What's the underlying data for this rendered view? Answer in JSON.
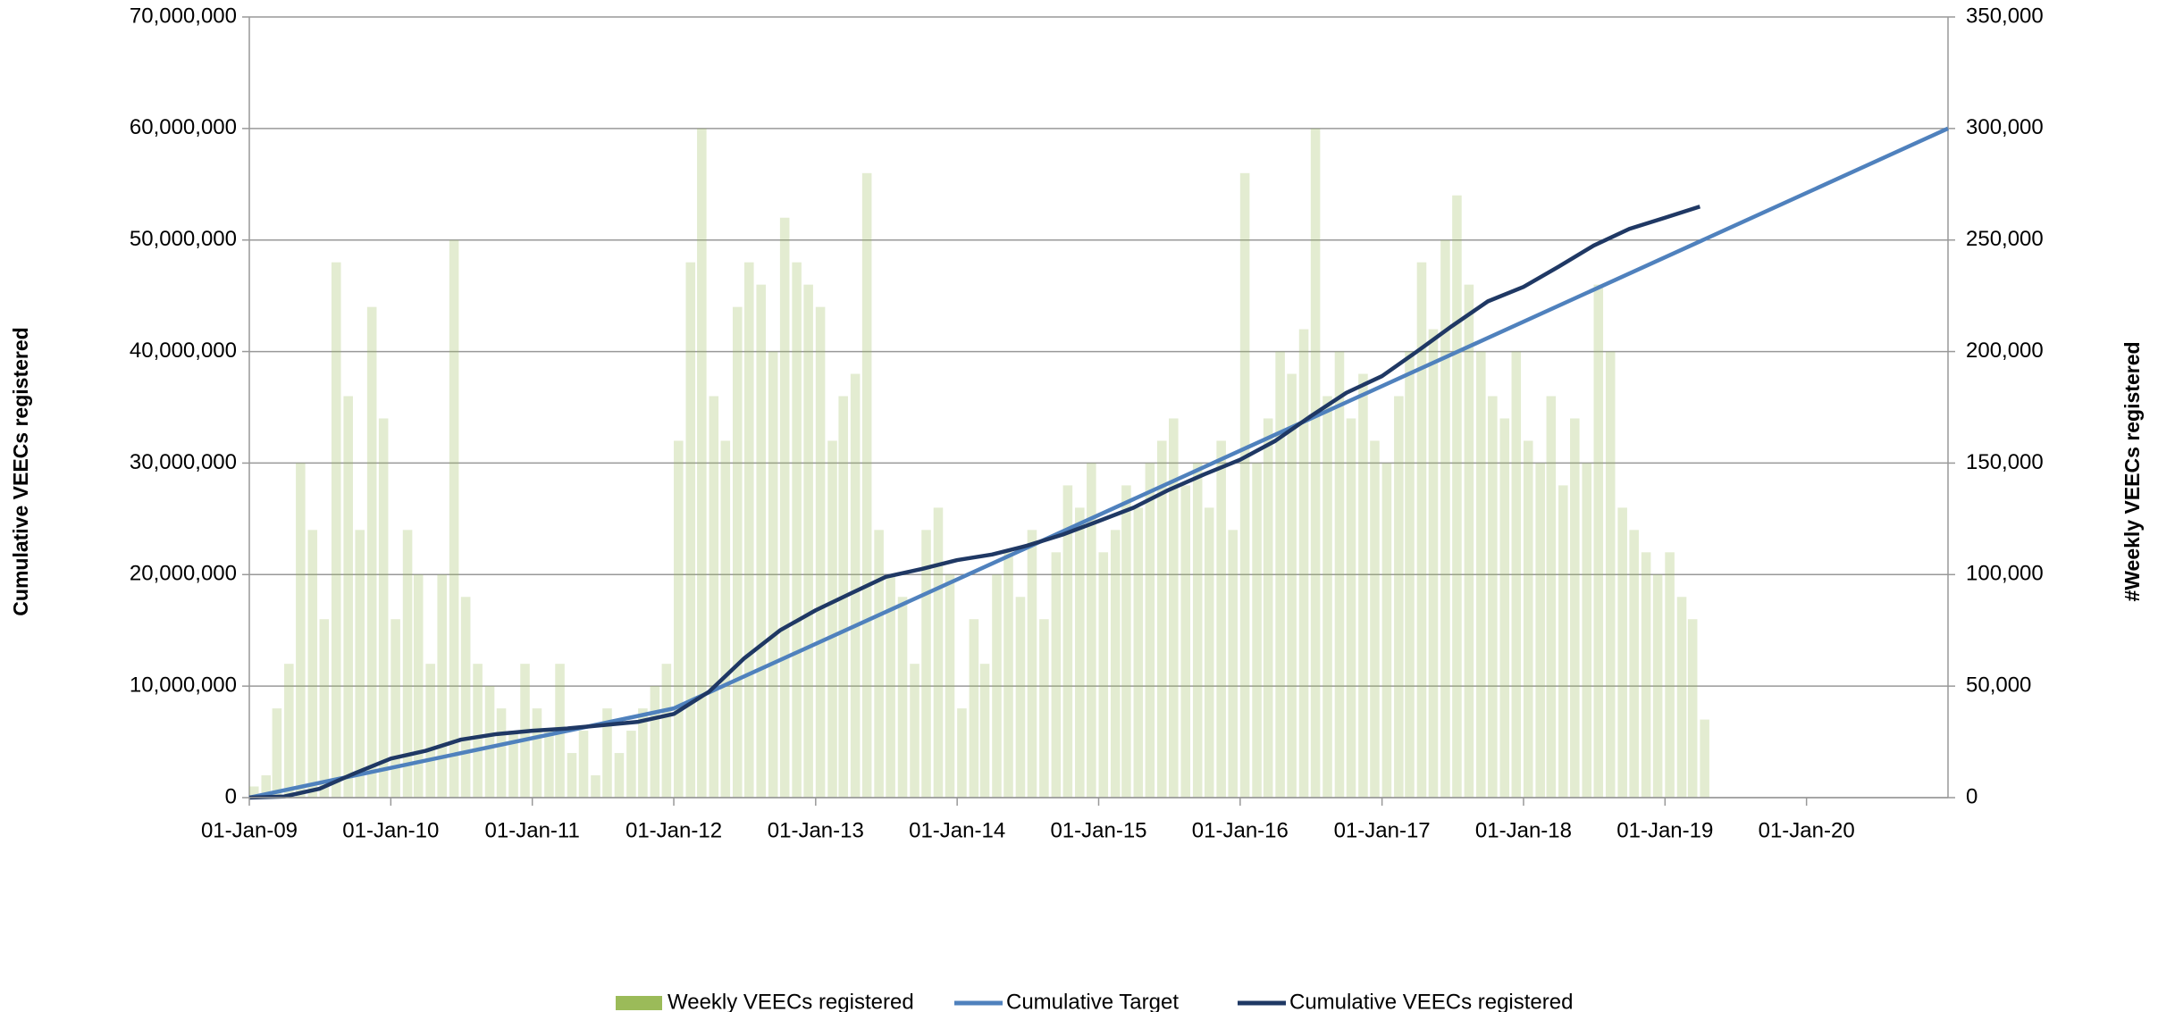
{
  "chart_data": {
    "type": "combo",
    "ylabel": "Cumulative VEECs registered",
    "y2label": "#Weekly VEECs registered",
    "xlim": [
      "2009-01-01",
      "2020-12-31"
    ],
    "xticks": [
      {
        "value": "2009-01-01",
        "label": "01-Jan-09"
      },
      {
        "value": "2010-01-01",
        "label": "01-Jan-10"
      },
      {
        "value": "2011-01-01",
        "label": "01-Jan-11"
      },
      {
        "value": "2012-01-01",
        "label": "01-Jan-12"
      },
      {
        "value": "2013-01-01",
        "label": "01-Jan-13"
      },
      {
        "value": "2014-01-01",
        "label": "01-Jan-14"
      },
      {
        "value": "2015-01-01",
        "label": "01-Jan-15"
      },
      {
        "value": "2016-01-01",
        "label": "01-Jan-16"
      },
      {
        "value": "2017-01-01",
        "label": "01-Jan-17"
      },
      {
        "value": "2018-01-01",
        "label": "01-Jan-18"
      },
      {
        "value": "2019-01-01",
        "label": "01-Jan-19"
      },
      {
        "value": "2020-01-01",
        "label": "01-Jan-20"
      }
    ],
    "ylim": [
      0,
      70000000
    ],
    "yticks": [
      0,
      {
        "value": 10000000,
        "label": "10,000,000"
      },
      {
        "value": 20000000,
        "label": "20,000,000"
      },
      {
        "value": 30000000,
        "label": "30,000,000"
      },
      {
        "value": 40000000,
        "label": "40,000,000"
      },
      {
        "value": 50000000,
        "label": "50,000,000"
      },
      {
        "value": 60000000,
        "label": "60,000,000"
      },
      {
        "value": 70000000,
        "label": "70,000,000"
      }
    ],
    "y2lim": [
      0,
      350000
    ],
    "y2ticks": [
      0,
      {
        "value": 50000,
        "label": "50,000"
      },
      {
        "value": 100000,
        "label": "100,000"
      },
      {
        "value": 150000,
        "label": "150,000"
      },
      {
        "value": 200000,
        "label": "200,000"
      },
      {
        "value": 250000,
        "label": "250,000"
      },
      {
        "value": 300000,
        "label": "300,000"
      },
      {
        "value": 350000,
        "label": "350,000"
      }
    ],
    "grid": true,
    "legend": "bottom",
    "series": [
      {
        "name": "Weekly VEECs registered",
        "type": "bar",
        "axis": "y2",
        "color": "#9bbb59",
        "x": [
          "2009-01-01",
          "2009-02-01",
          "2009-03-01",
          "2009-04-01",
          "2009-05-01",
          "2009-06-01",
          "2009-07-01",
          "2009-08-01",
          "2009-09-01",
          "2009-10-01",
          "2009-11-01",
          "2009-12-01",
          "2010-01-01",
          "2010-02-01",
          "2010-03-01",
          "2010-04-01",
          "2010-05-01",
          "2010-06-01",
          "2010-07-01",
          "2010-08-01",
          "2010-09-01",
          "2010-10-01",
          "2010-11-01",
          "2010-12-01",
          "2011-01-01",
          "2011-02-01",
          "2011-03-01",
          "2011-04-01",
          "2011-05-01",
          "2011-06-01",
          "2011-07-01",
          "2011-08-01",
          "2011-09-01",
          "2011-10-01",
          "2011-11-01",
          "2011-12-01",
          "2012-01-01",
          "2012-02-01",
          "2012-03-01",
          "2012-04-01",
          "2012-05-01",
          "2012-06-01",
          "2012-07-01",
          "2012-08-01",
          "2012-09-01",
          "2012-10-01",
          "2012-11-01",
          "2012-12-01",
          "2013-01-01",
          "2013-02-01",
          "2013-03-01",
          "2013-04-01",
          "2013-05-01",
          "2013-06-01",
          "2013-07-01",
          "2013-08-01",
          "2013-09-01",
          "2013-10-01",
          "2013-11-01",
          "2013-12-01",
          "2014-01-01",
          "2014-02-01",
          "2014-03-01",
          "2014-04-01",
          "2014-05-01",
          "2014-06-01",
          "2014-07-01",
          "2014-08-01",
          "2014-09-01",
          "2014-10-01",
          "2014-11-01",
          "2014-12-01",
          "2015-01-01",
          "2015-02-01",
          "2015-03-01",
          "2015-04-01",
          "2015-05-01",
          "2015-06-01",
          "2015-07-01",
          "2015-08-01",
          "2015-09-01",
          "2015-10-01",
          "2015-11-01",
          "2015-12-01",
          "2016-01-01",
          "2016-02-01",
          "2016-03-01",
          "2016-04-01",
          "2016-05-01",
          "2016-06-01",
          "2016-07-01",
          "2016-08-01",
          "2016-09-01",
          "2016-10-01",
          "2016-11-01",
          "2016-12-01",
          "2017-01-01",
          "2017-02-01",
          "2017-03-01",
          "2017-04-01",
          "2017-05-01",
          "2017-06-01",
          "2017-07-01",
          "2017-08-01",
          "2017-09-01",
          "2017-10-01",
          "2017-11-01",
          "2017-12-01",
          "2018-01-01",
          "2018-02-01",
          "2018-03-01",
          "2018-04-01",
          "2018-05-01",
          "2018-06-01",
          "2018-07-01",
          "2018-08-01",
          "2018-09-01",
          "2018-10-01",
          "2018-11-01",
          "2018-12-01",
          "2019-01-01",
          "2019-02-01",
          "2019-03-01",
          "2019-04-01"
        ],
        "values": [
          5000,
          10000,
          40000,
          60000,
          150000,
          120000,
          80000,
          240000,
          180000,
          120000,
          220000,
          170000,
          80000,
          120000,
          100000,
          60000,
          100000,
          250000,
          90000,
          60000,
          50000,
          40000,
          30000,
          60000,
          40000,
          30000,
          60000,
          20000,
          30000,
          10000,
          40000,
          20000,
          30000,
          40000,
          50000,
          60000,
          160000,
          240000,
          300000,
          180000,
          160000,
          220000,
          240000,
          230000,
          200000,
          260000,
          240000,
          230000,
          220000,
          160000,
          180000,
          190000,
          280000,
          120000,
          100000,
          90000,
          60000,
          120000,
          130000,
          100000,
          40000,
          80000,
          60000,
          100000,
          110000,
          90000,
          120000,
          80000,
          110000,
          140000,
          130000,
          150000,
          110000,
          120000,
          140000,
          130000,
          150000,
          160000,
          170000,
          140000,
          150000,
          130000,
          160000,
          120000,
          280000,
          150000,
          170000,
          200000,
          190000,
          210000,
          300000,
          180000,
          200000,
          170000,
          190000,
          160000,
          150000,
          180000,
          200000,
          240000,
          210000,
          250000,
          270000,
          230000,
          200000,
          180000,
          170000,
          200000,
          160000,
          150000,
          180000,
          140000,
          170000,
          150000,
          230000,
          200000,
          130000,
          120000,
          110000,
          100000,
          110000,
          90000,
          80000,
          35000
        ]
      },
      {
        "name": "Cumulative Target",
        "type": "line",
        "axis": "y",
        "color": "#4f81bd",
        "x": [
          "2009-01-01",
          "2012-01-01",
          "2020-12-31"
        ],
        "values": [
          0,
          8000000,
          60000000
        ]
      },
      {
        "name": "Cumulative VEECs registered",
        "type": "line",
        "axis": "y",
        "color": "#1f3864",
        "x": [
          "2009-01-01",
          "2009-04-01",
          "2009-07-01",
          "2009-10-01",
          "2010-01-01",
          "2010-04-01",
          "2010-07-01",
          "2010-10-01",
          "2011-01-01",
          "2011-04-01",
          "2011-07-01",
          "2011-10-01",
          "2012-01-01",
          "2012-04-01",
          "2012-07-01",
          "2012-10-01",
          "2013-01-01",
          "2013-04-01",
          "2013-07-01",
          "2013-10-01",
          "2014-01-01",
          "2014-04-01",
          "2014-07-01",
          "2014-10-01",
          "2015-01-01",
          "2015-04-01",
          "2015-07-01",
          "2015-10-01",
          "2016-01-01",
          "2016-04-01",
          "2016-07-01",
          "2016-10-01",
          "2017-01-01",
          "2017-04-01",
          "2017-07-01",
          "2017-10-01",
          "2018-01-01",
          "2018-04-01",
          "2018-07-01",
          "2018-10-01",
          "2019-01-01",
          "2019-04-01"
        ],
        "values": [
          0,
          100000,
          800000,
          2200000,
          3500000,
          4200000,
          5200000,
          5700000,
          6000000,
          6200000,
          6500000,
          6800000,
          7500000,
          9500000,
          12500000,
          15000000,
          16800000,
          18300000,
          19800000,
          20500000,
          21300000,
          21800000,
          22600000,
          23600000,
          24800000,
          26000000,
          27600000,
          29000000,
          30300000,
          32000000,
          34200000,
          36300000,
          37800000,
          40000000,
          42300000,
          44500000,
          45800000,
          47600000,
          49500000,
          51000000,
          52000000,
          53000000
        ]
      }
    ]
  }
}
